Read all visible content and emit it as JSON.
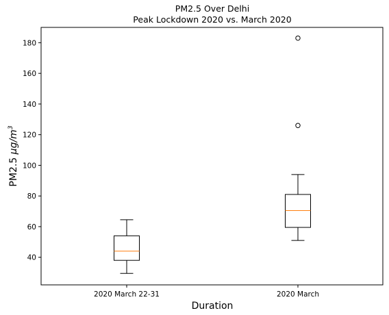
{
  "chart_data": {
    "type": "box",
    "title": "PM2.5 Over Delhi",
    "subtitle": "Peak Lockdown 2020 vs. March 2020",
    "xlabel": "Duration",
    "ylabel": {
      "prefix": "PM2.5 ",
      "unit": "μg/m",
      "unit_exponent": "3"
    },
    "ylim": [
      22,
      190
    ],
    "yticks": [
      40,
      60,
      80,
      100,
      120,
      140,
      160,
      180
    ],
    "grid": false,
    "categories": [
      "2020 March 22-31",
      "2020 March"
    ],
    "boxes": [
      {
        "label": "2020 March 22-31",
        "whisker_low": 29.5,
        "q1": 38,
        "median": 44,
        "q3": 54,
        "whisker_high": 64.5,
        "outliers": []
      },
      {
        "label": "2020 March",
        "whisker_low": 51,
        "q1": 59.5,
        "median": 70.5,
        "q3": 81,
        "whisker_high": 94,
        "outliers": [
          126,
          183
        ]
      }
    ],
    "colors": {
      "box": "#000000",
      "median": "#ff7f0e",
      "outlier_edge": "#000000"
    }
  }
}
